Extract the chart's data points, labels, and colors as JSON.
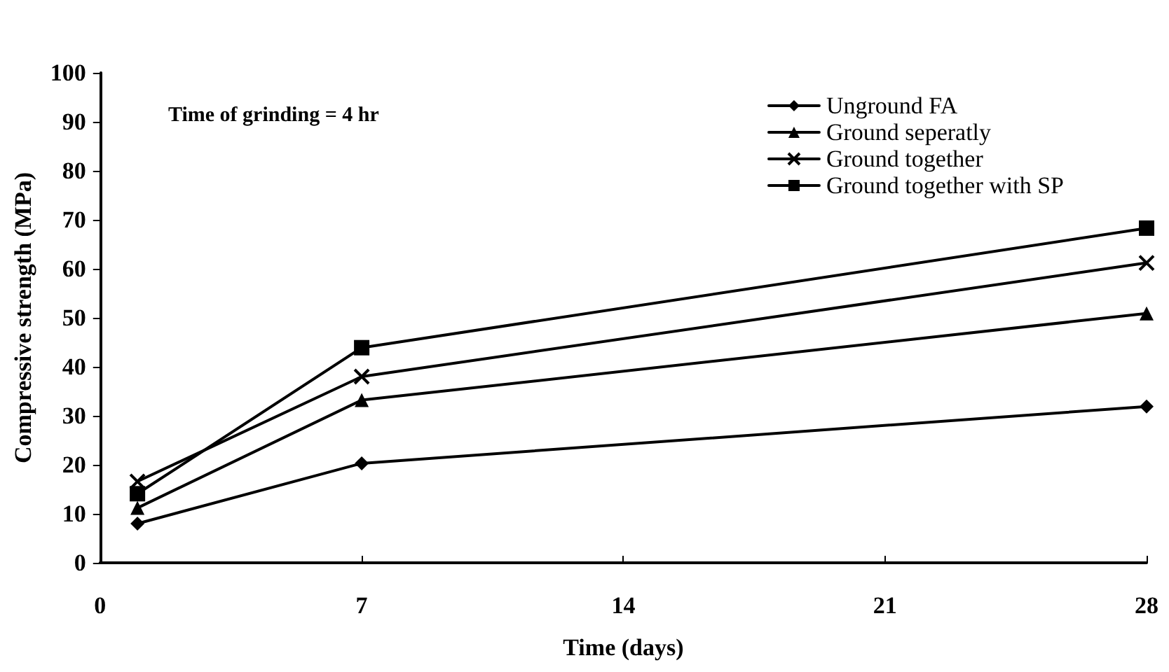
{
  "chart_data": {
    "type": "line",
    "xlabel": "Time (days)",
    "ylabel": "Compressive strength (MPa)",
    "annotations": [
      "Time of grinding = 4 hr"
    ],
    "x": [
      1,
      7,
      28
    ],
    "xlim": [
      0,
      28
    ],
    "xticks": [
      0,
      7,
      14,
      21,
      28
    ],
    "ylim": [
      0,
      100
    ],
    "yticks": [
      0,
      10,
      20,
      30,
      40,
      50,
      60,
      70,
      80,
      90,
      100
    ],
    "grid": false,
    "legend": "top right",
    "line_style": "solid",
    "series": [
      {
        "name": "Unground FA",
        "color": "#000000",
        "marker": "diamond",
        "values": [
          8,
          20.3,
          31.9
        ]
      },
      {
        "name": "Ground seperatly",
        "color": "#000000",
        "marker": "triangle",
        "values": [
          11.2,
          33.2,
          50.9
        ]
      },
      {
        "name": "Ground together",
        "color": "#000000",
        "marker": "cross",
        "values": [
          16.6,
          38,
          61.2
        ]
      },
      {
        "name": "Ground together with SP",
        "color": "#000000",
        "marker": "square",
        "values": [
          14.1,
          43.9,
          68.3
        ]
      }
    ]
  }
}
